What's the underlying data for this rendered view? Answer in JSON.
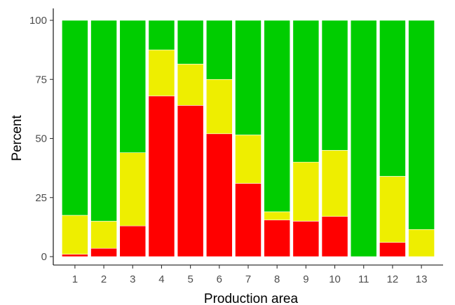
{
  "chart_data": {
    "type": "bar",
    "stacked": true,
    "categories": [
      "1",
      "2",
      "3",
      "4",
      "5",
      "6",
      "7",
      "8",
      "9",
      "10",
      "11",
      "12",
      "13"
    ],
    "series": [
      {
        "color": "#ff0000",
        "values": [
          1,
          3.5,
          13,
          68,
          64,
          52,
          31,
          15.5,
          15,
          17,
          0,
          6,
          0
        ]
      },
      {
        "color": "#eeee00",
        "values": [
          16.5,
          11.5,
          31,
          19.5,
          17.5,
          23,
          20.5,
          3.5,
          25,
          28,
          0,
          28,
          11.5
        ]
      },
      {
        "color": "#00cd00",
        "values": [
          82.5,
          85,
          56,
          12.5,
          18.5,
          25,
          48.5,
          81,
          60,
          55,
          100,
          66,
          88.5
        ]
      }
    ],
    "xlabel": "Production area",
    "ylabel": "Percent",
    "ylim": [
      0,
      100
    ],
    "yticks": [
      0,
      25,
      50,
      75,
      100
    ],
    "grid": false,
    "legend": "none"
  }
}
